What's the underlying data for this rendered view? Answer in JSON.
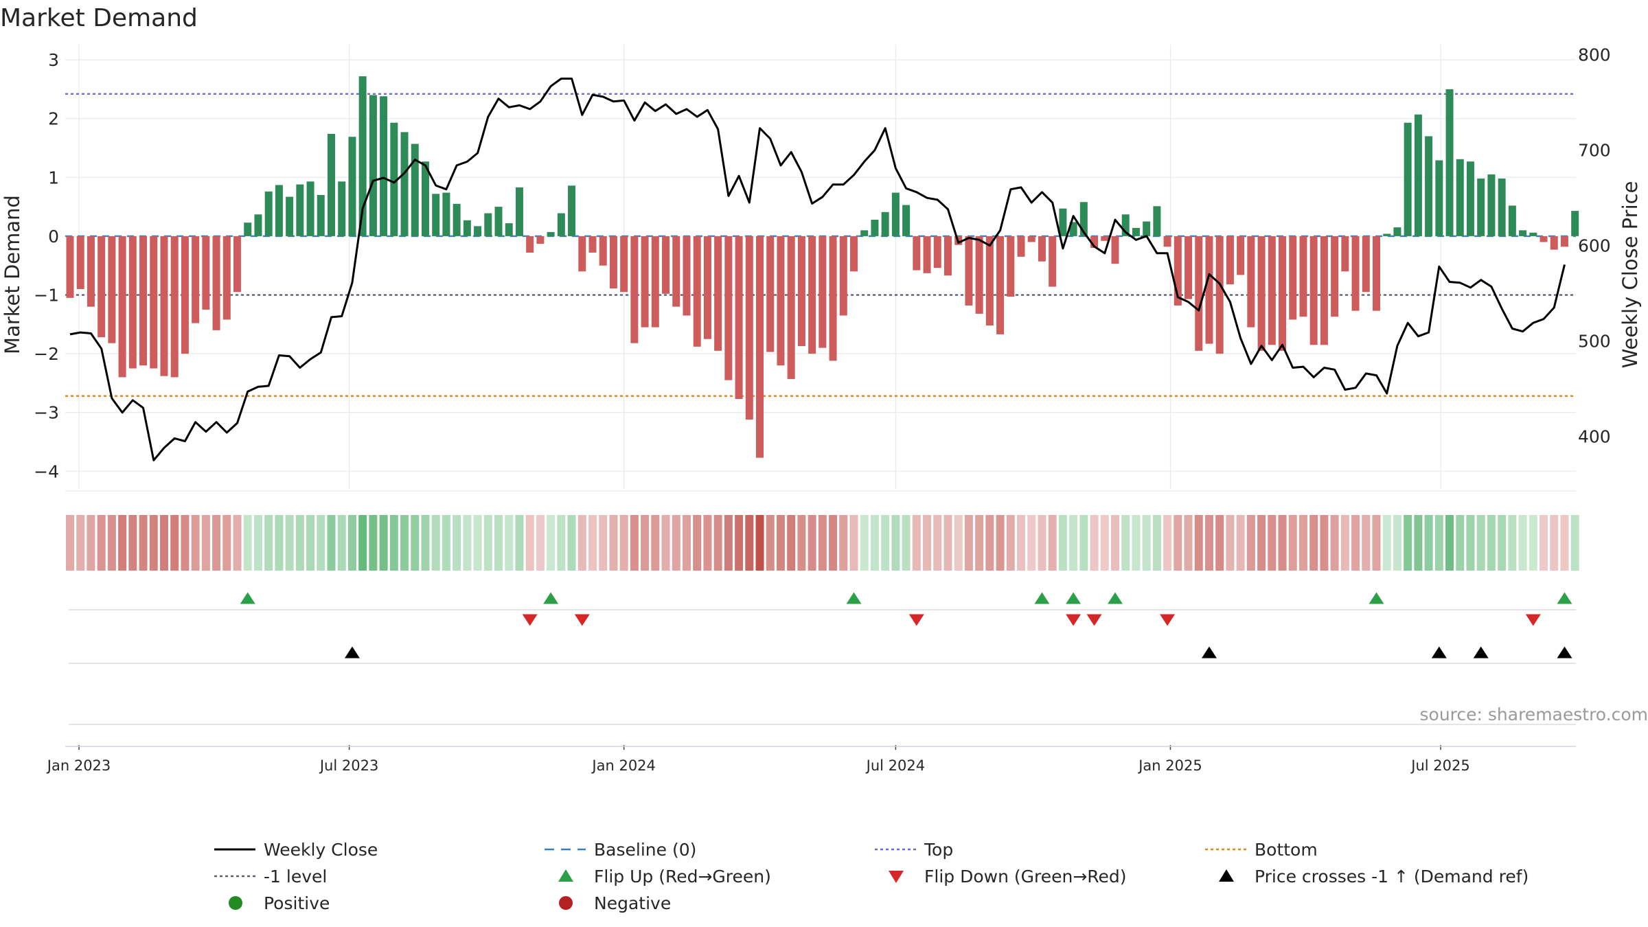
{
  "chart_data": {
    "type": "bar",
    "title": "Market Demand",
    "ylabel": "Market Demand",
    "y2label": "Weekly Close Price",
    "ylim": [
      -4.3,
      3.2
    ],
    "y2lim": [
      345,
      807
    ],
    "yticks": [
      "3",
      "2",
      "1",
      "0",
      "−1",
      "−2",
      "−3",
      "−4"
    ],
    "ytick_values": [
      3,
      2,
      1,
      0,
      -1,
      -2,
      -3,
      -4
    ],
    "y2ticks": [
      "800",
      "700",
      "600",
      "500",
      "400"
    ],
    "y2tick_values": [
      800,
      700,
      600,
      500,
      400
    ],
    "xtick_labels": [
      "Jan 2023",
      "Jul 2023",
      "Jan 2024",
      "Jul 2024",
      "Jan 2025",
      "Jul 2025"
    ],
    "xtick_dates": [
      "2023-01-01",
      "2023-07-01",
      "2024-01-01",
      "2024-07-01",
      "2025-01-01",
      "2025-07-01"
    ],
    "x_start": "2022-12-26",
    "grid": true,
    "source": "source: sharemaestro.com",
    "levels": {
      "top": 2.42,
      "bottom": -2.72,
      "minus_one": -1,
      "baseline": 0
    },
    "colors": {
      "positive": "#2e8b57",
      "negative": "#cd5c5c",
      "close": "#000000",
      "top": "#6a6ad8",
      "bottom": "#e08a1a",
      "minus_one": "#5a6072",
      "baseline": "#3f7fbf",
      "flip_up": "#2ca048",
      "flip_down": "#d62728",
      "cross": "#000000",
      "positive_dot": "#228b22",
      "negative_dot": "#b22222"
    },
    "demand": [
      -1.05,
      -0.9,
      -1.2,
      -1.72,
      -1.82,
      -2.4,
      -2.25,
      -2.2,
      -2.25,
      -2.38,
      -2.4,
      -2.0,
      -1.48,
      -1.25,
      -1.6,
      -1.42,
      -0.95,
      0.23,
      0.37,
      0.76,
      0.87,
      0.67,
      0.88,
      0.93,
      0.7,
      1.74,
      0.93,
      1.69,
      2.72,
      2.4,
      2.38,
      1.93,
      1.77,
      1.57,
      1.27,
      0.72,
      0.74,
      0.55,
      0.27,
      0.17,
      0.39,
      0.5,
      0.22,
      0.83,
      -0.28,
      -0.13,
      0.07,
      0.39,
      0.86,
      -0.6,
      -0.28,
      -0.5,
      -0.89,
      -0.95,
      -1.82,
      -1.55,
      -1.55,
      -0.98,
      -1.2,
      -1.35,
      -1.88,
      -1.75,
      -1.95,
      -2.45,
      -2.77,
      -3.12,
      -3.77,
      -1.97,
      -2.2,
      -2.43,
      -1.87,
      -2.0,
      -1.9,
      -2.12,
      -1.35,
      -0.6,
      0.1,
      0.28,
      0.41,
      0.74,
      0.53,
      -0.58,
      -0.63,
      -0.54,
      -0.67,
      -0.15,
      -1.18,
      -1.32,
      -1.52,
      -1.67,
      -1.03,
      -0.35,
      -0.1,
      -0.43,
      -0.86,
      0.47,
      0.24,
      0.58,
      -0.2,
      -0.08,
      -0.47,
      0.37,
      0.14,
      0.25,
      0.51,
      -0.18,
      -1.18,
      -1.07,
      -1.95,
      -1.83,
      -2.0,
      -0.82,
      -0.66,
      -1.55,
      -1.95,
      -1.85,
      -1.95,
      -1.42,
      -1.37,
      -1.85,
      -1.85,
      -1.37,
      -0.6,
      -1.27,
      -0.95,
      -1.27,
      0.04,
      0.15,
      1.93,
      2.07,
      1.7,
      1.29,
      2.5,
      1.31,
      1.27,
      0.98,
      1.05,
      0.98,
      0.52,
      0.1,
      0.06,
      -0.1,
      -0.23,
      -0.18,
      0.43
    ],
    "close": [
      507,
      509,
      508,
      492,
      440,
      425,
      438,
      430,
      375,
      388,
      398,
      395,
      415,
      405,
      415,
      404,
      414,
      447,
      452,
      453,
      485,
      484,
      472,
      481,
      488,
      525,
      526,
      561,
      639,
      668,
      671,
      666,
      676,
      690,
      684,
      663,
      659,
      684,
      688,
      697,
      735,
      754,
      745,
      747,
      743,
      751,
      767,
      775,
      775,
      737,
      758,
      756,
      751,
      752,
      731,
      750,
      741,
      748,
      738,
      743,
      735,
      742,
      722,
      652,
      673,
      645,
      723,
      712,
      684,
      698,
      677,
      644,
      651,
      664,
      664,
      674,
      688,
      700,
      723,
      681,
      660,
      656,
      650,
      648,
      638,
      603,
      608,
      606,
      600,
      616,
      659,
      661,
      645,
      656,
      645,
      597,
      631,
      614,
      599,
      592,
      627,
      614,
      606,
      610,
      592,
      592,
      546,
      541,
      532,
      570,
      560,
      541,
      503,
      476,
      495,
      480,
      496,
      472,
      473,
      462,
      472,
      470,
      449,
      451,
      466,
      464,
      445,
      495,
      519,
      505,
      509,
      578,
      562,
      561,
      556,
      564,
      557,
      534,
      513,
      510,
      519,
      523,
      535,
      580
    ],
    "flip_up_idx": [
      17,
      46,
      75,
      93,
      96,
      100,
      125,
      143
    ],
    "flip_down_idx": [
      44,
      49,
      81,
      96,
      98,
      105,
      140
    ],
    "cross_idx": [
      27,
      109,
      131,
      135,
      143
    ],
    "legend": [
      {
        "label": "Weekly Close",
        "symbol": "line",
        "color": "#000000"
      },
      {
        "label": "Baseline (0)",
        "symbol": "dash",
        "color": "#3f7fbf"
      },
      {
        "label": "Top",
        "symbol": "dot",
        "color": "#6a6ad8"
      },
      {
        "label": "Bottom",
        "symbol": "dot",
        "color": "#e08a1a"
      },
      {
        "label": "-1 level",
        "symbol": "dot",
        "color": "#5a6072"
      },
      {
        "label": "Flip Up (Red→Green)",
        "symbol": "tri-up",
        "color": "#2ca048"
      },
      {
        "label": "Flip Down (Green→Red)",
        "symbol": "tri-down",
        "color": "#d62728"
      },
      {
        "label": "Price crosses -1 ↑ (Demand ref)",
        "symbol": "tri-up",
        "color": "#000000"
      },
      {
        "label": "Positive",
        "symbol": "circle",
        "color": "#228b22"
      },
      {
        "label": "Negative",
        "symbol": "circle",
        "color": "#b22222"
      }
    ]
  }
}
